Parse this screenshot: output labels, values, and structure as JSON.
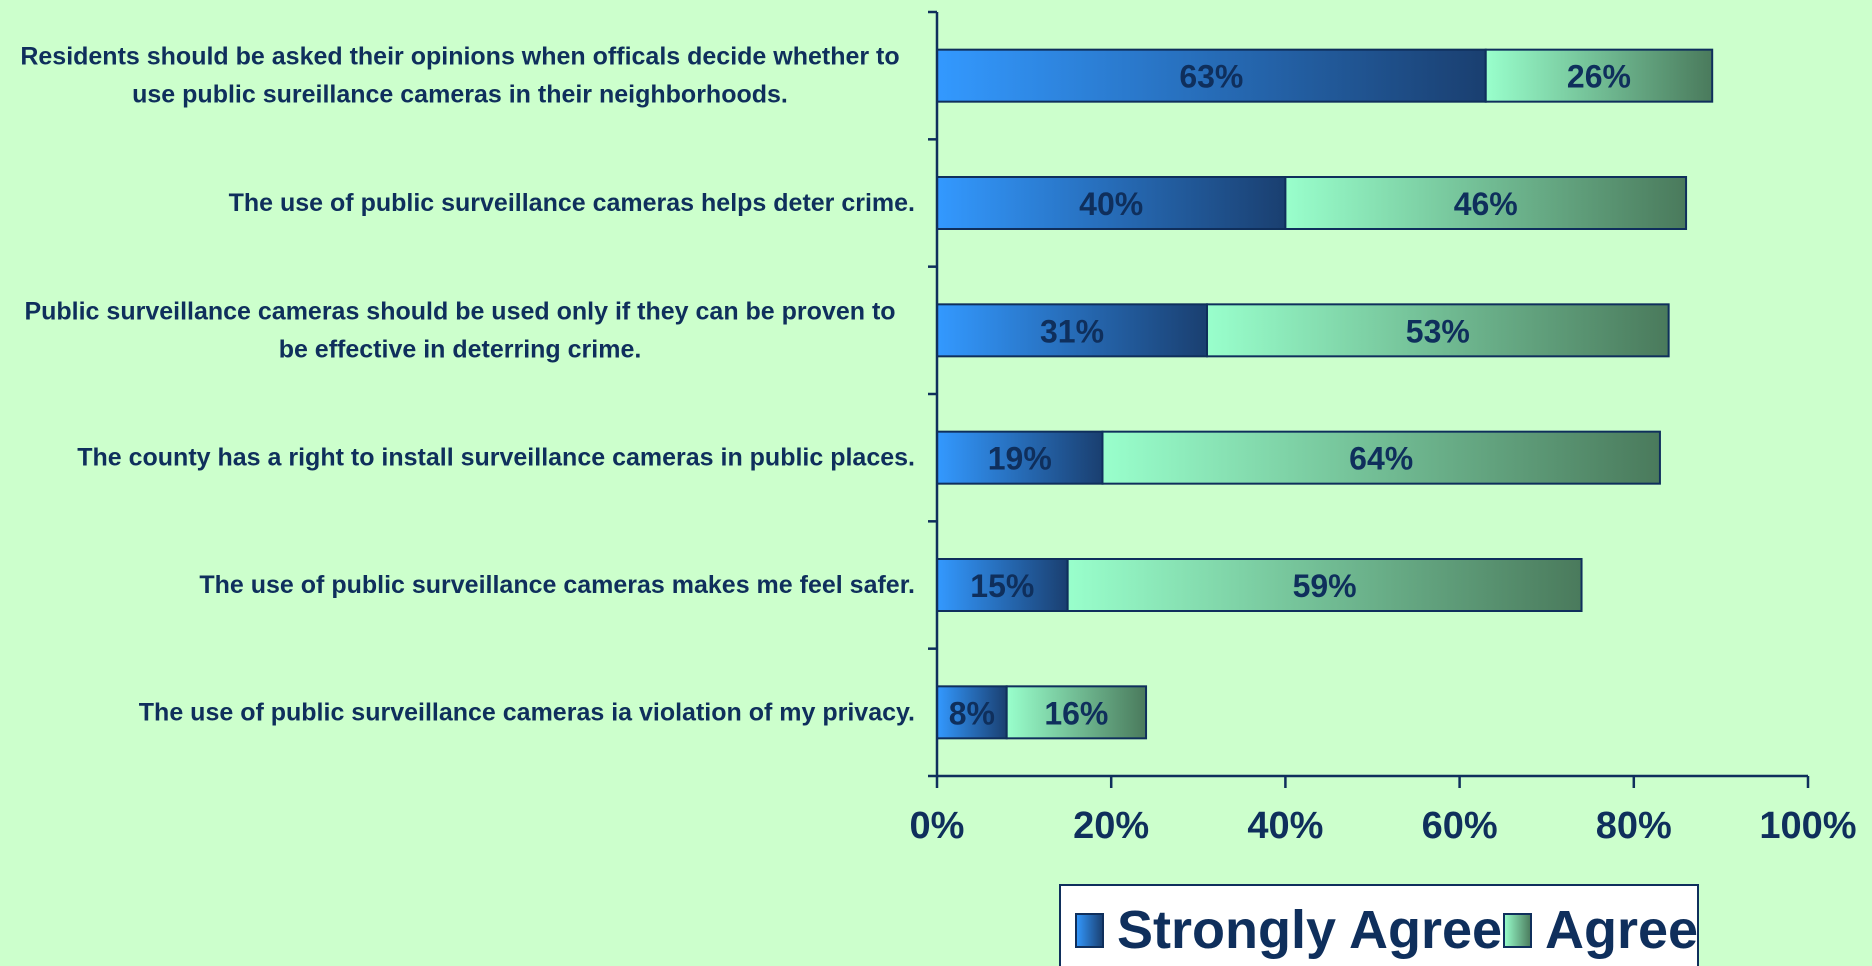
{
  "chart_data": {
    "type": "bar",
    "orientation": "horizontal",
    "stacked": true,
    "categories": [
      [
        "Residents should be asked their opinions when officals decide whether to",
        "use public sureillance cameras in their neighborhoods."
      ],
      [
        "The use of public surveillance cameras helps deter crime."
      ],
      [
        "Public surveillance cameras should be used only if they can be proven to",
        "be effective in deterring crime."
      ],
      [
        "The county has a right to install surveillance cameras in public places."
      ],
      [
        "The use of public surveillance cameras makes me feel safer."
      ],
      [
        "The use of public surveillance cameras ia violation of my privacy."
      ]
    ],
    "series": [
      {
        "name": "Strongly Agree",
        "values": [
          63,
          40,
          31,
          19,
          15,
          8
        ],
        "labels": [
          "63%",
          "40%",
          "31%",
          "19%",
          "15%",
          "8%"
        ],
        "color_start": "#3399ff",
        "color_end": "#1a3f70"
      },
      {
        "name": "Agree",
        "values": [
          26,
          46,
          53,
          64,
          59,
          16
        ],
        "labels": [
          "26%",
          "46%",
          "53%",
          "64%",
          "59%",
          "16%"
        ],
        "color_start": "#99ffcc",
        "color_end": "#4a7a5c"
      }
    ],
    "xlim": [
      0,
      100
    ],
    "xticks": [
      0,
      20,
      40,
      60,
      80,
      100
    ],
    "xtick_labels": [
      "0%",
      "20%",
      "40%",
      "60%",
      "80%",
      "100%"
    ],
    "legend_position": "bottom",
    "grid": false,
    "colors": {
      "background": "#ccffcc",
      "text": "#0f2f5c",
      "axis": "#0f2f5c"
    }
  }
}
